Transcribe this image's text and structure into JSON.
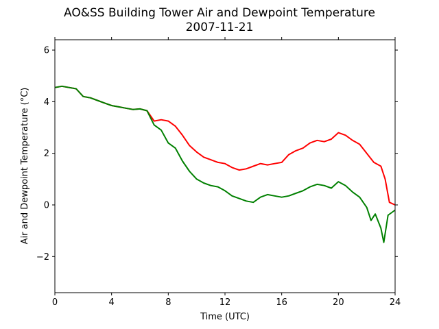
{
  "chart_data": {
    "type": "line",
    "title": "AO&SS Building Tower Air and Dewpoint Temperature",
    "subtitle": "2007-11-21",
    "xlabel": "Time (UTC)",
    "ylabel": "Air and Dewpoint Temperature (°C)",
    "xlim": [
      0,
      24
    ],
    "ylim": [
      -3.4,
      6.4
    ],
    "x_ticks": [
      0,
      4,
      8,
      12,
      16,
      20,
      24
    ],
    "y_ticks": [
      -2,
      0,
      2,
      4,
      6
    ],
    "y_tick_labels": [
      "−2",
      "0",
      "2",
      "4",
      "6"
    ],
    "grid": false,
    "series": [
      {
        "color": "#ff0000",
        "x": [
          0,
          0.5,
          1,
          1.5,
          2,
          2.5,
          3,
          3.5,
          4,
          4.5,
          5,
          5.5,
          6,
          6.5,
          7,
          7.5,
          8,
          8.5,
          9,
          9.5,
          10,
          10.5,
          11,
          11.5,
          12,
          12.5,
          13,
          13.5,
          14,
          14.5,
          15,
          15.5,
          16,
          16.5,
          17,
          17.5,
          18,
          18.5,
          19,
          19.5,
          20,
          20.5,
          21,
          21.5,
          22,
          22.5,
          23,
          23.3,
          23.6,
          24
        ],
        "values": [
          4.55,
          4.6,
          4.55,
          4.5,
          4.2,
          4.15,
          4.05,
          3.95,
          3.85,
          3.8,
          3.75,
          3.7,
          3.72,
          3.65,
          3.25,
          3.3,
          3.25,
          3.05,
          2.7,
          2.3,
          2.05,
          1.85,
          1.75,
          1.65,
          1.6,
          1.45,
          1.35,
          1.4,
          1.5,
          1.6,
          1.55,
          1.6,
          1.65,
          1.95,
          2.1,
          2.2,
          2.4,
          2.5,
          2.45,
          2.55,
          2.8,
          2.7,
          2.5,
          2.35,
          2.0,
          1.65,
          1.5,
          1.0,
          0.1,
          0.0
        ]
      },
      {
        "color": "#008000",
        "x": [
          0,
          0.5,
          1,
          1.5,
          2,
          2.5,
          3,
          3.5,
          4,
          4.5,
          5,
          5.5,
          6,
          6.5,
          7,
          7.5,
          8,
          8.5,
          9,
          9.5,
          10,
          10.5,
          11,
          11.5,
          12,
          12.5,
          13,
          13.5,
          14,
          14.5,
          15,
          15.5,
          16,
          16.5,
          17,
          17.5,
          18,
          18.5,
          19,
          19.5,
          20,
          20.5,
          21,
          21.5,
          22,
          22.3,
          22.6,
          23,
          23.2,
          23.5,
          24
        ],
        "values": [
          4.55,
          4.6,
          4.55,
          4.5,
          4.2,
          4.15,
          4.05,
          3.95,
          3.85,
          3.8,
          3.75,
          3.7,
          3.72,
          3.65,
          3.1,
          2.9,
          2.4,
          2.2,
          1.7,
          1.3,
          1.0,
          0.85,
          0.75,
          0.7,
          0.55,
          0.35,
          0.25,
          0.15,
          0.1,
          0.3,
          0.4,
          0.35,
          0.3,
          0.35,
          0.45,
          0.55,
          0.7,
          0.8,
          0.75,
          0.65,
          0.9,
          0.75,
          0.5,
          0.3,
          -0.1,
          -0.6,
          -0.35,
          -0.9,
          -1.45,
          -0.4,
          -0.2
        ]
      }
    ]
  }
}
